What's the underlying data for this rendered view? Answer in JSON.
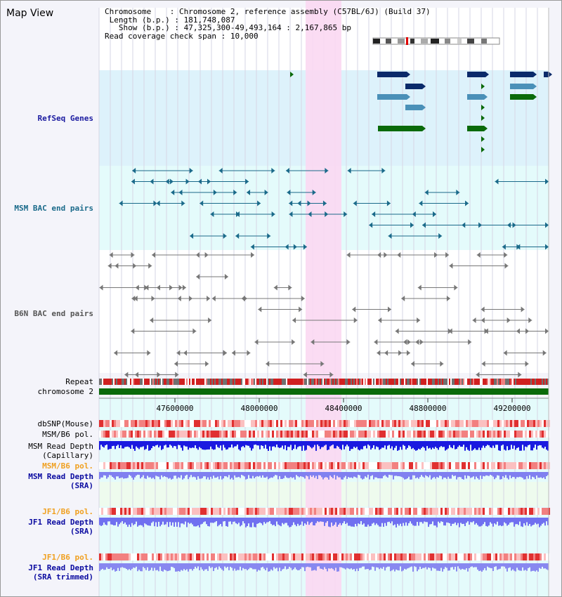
{
  "title": "Map View",
  "info": {
    "chromosome_key": "Chromosome",
    "chromosome_val": "Chromosome 2, reference assembly (C57BL/6J) (Build 37)",
    "length_key": "Length (b.p.)",
    "length_val": "181,748,087",
    "show_key": "Show (b.p.)",
    "show_val": "47,325,300-49,493,164 : 2,167,865 bp",
    "coverage_key": "Read coverage check span",
    "coverage_val": "10,000"
  },
  "colors": {
    "refseq_bg": "#ddf2fb",
    "msm_bg": "#e4fbfb",
    "highlight": "#fbd8f2",
    "refseq_label": "#1a1aa0",
    "msm_label": "#1a6a8a",
    "b6n_label": "#555555",
    "orange": "#f0a020",
    "navy": "#0a0aa0",
    "chromosome_bar": "#0a6a0a"
  },
  "tracks": {
    "refseq": "RefSeq Genes",
    "msm_bac": "MSM BAC end pairs",
    "b6n_bac": "B6N BAC end pairs",
    "repeat": "Repeat",
    "chromosome": "chromosome 2",
    "dbsnp": "dbSNP(Mouse)",
    "msm_b6_pol_1": "MSM/B6 pol.",
    "msm_depth_cap_1": "MSM Read Depth",
    "msm_depth_cap_2": "(Capillary)",
    "msm_b6_pol_2": "MSM/B6 pol.",
    "msm_depth_sra_1": "MSM Read Depth",
    "msm_depth_sra_2": "(SRA)",
    "jf1_pol_1": "JF1/B6 pol.",
    "jf1_depth_sra_1": "JF1 Read Depth",
    "jf1_depth_sra_2": "(SRA)",
    "jf1_pol_2": "JF1/B6 pol.",
    "jf1_depth_trim_1": "JF1 Read Depth",
    "jf1_depth_trim_2": "(SRA trimmed)"
  },
  "axis": {
    "ticks": [
      "47600000",
      "48000000",
      "48400000",
      "48800000",
      "49200000"
    ]
  }
}
